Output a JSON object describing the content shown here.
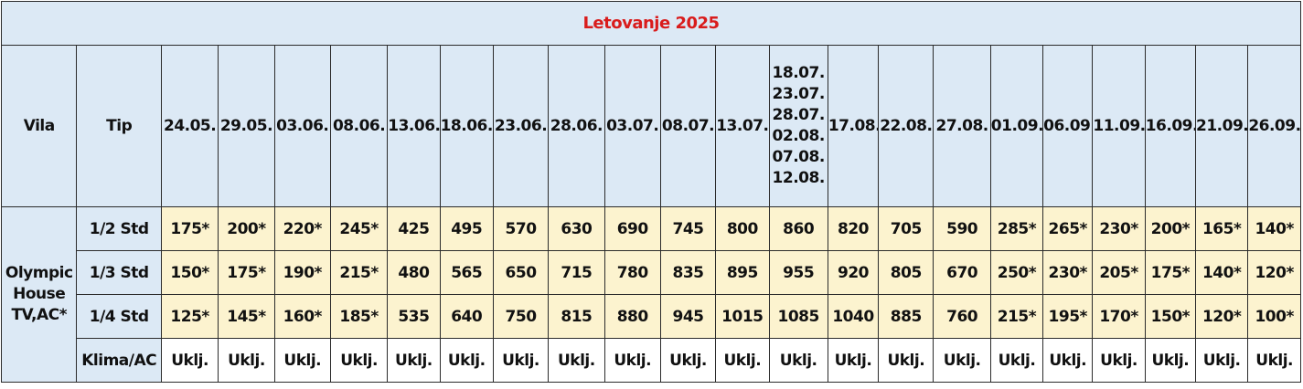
{
  "title": "Letovanje 2025",
  "headers": {
    "vila": "Vila",
    "tip": "Tip",
    "dates": [
      "24.05.",
      "29.05.",
      "03.06.",
      "08.06.",
      "13.06.",
      "18.06.",
      "23.06.",
      "28.06.",
      "03.07.",
      "08.07.",
      "13.07.",
      "18.07. 23.07. 28.07. 02.08. 07.08. 12.08.",
      "17.08.",
      "22.08.",
      "27.08.",
      "01.09.",
      "06.09.",
      "11.09.",
      "16.09.",
      "21.09.",
      "26.09."
    ],
    "multi_date": [
      "18.07.",
      "23.07.",
      "28.07.",
      "02.08.",
      "07.08.",
      "12.08."
    ]
  },
  "vila": {
    "line1": "Olympic",
    "line2": "House",
    "line3": "TV,AC*"
  },
  "rows": [
    {
      "tip": "1/2 Std",
      "prices": [
        "175*",
        "200*",
        "220*",
        "245*",
        "425",
        "495",
        "570",
        "630",
        "690",
        "745",
        "800",
        "860",
        "820",
        "705",
        "590",
        "285*",
        "265*",
        "230*",
        "200*",
        "165*",
        "140*"
      ]
    },
    {
      "tip": "1/3 Std",
      "prices": [
        "150*",
        "175*",
        "190*",
        "215*",
        "480",
        "565",
        "650",
        "715",
        "780",
        "835",
        "895",
        "955",
        "920",
        "805",
        "670",
        "250*",
        "230*",
        "205*",
        "175*",
        "140*",
        "120*"
      ]
    },
    {
      "tip": "1/4 Std",
      "prices": [
        "125*",
        "145*",
        "160*",
        "185*",
        "535",
        "640",
        "750",
        "815",
        "880",
        "945",
        "1015",
        "1085",
        "1040",
        "885",
        "760",
        "215*",
        "195*",
        "170*",
        "150*",
        "120*",
        "100*"
      ]
    }
  ],
  "ac_row": {
    "label": "Klima/AC",
    "values": [
      "Uklj.",
      "Uklj.",
      "Uklj.",
      "Uklj.",
      "Uklj.",
      "Uklj.",
      "Uklj.",
      "Uklj.",
      "Uklj.",
      "Uklj.",
      "Uklj.",
      "Uklj.",
      "Uklj.",
      "Uklj.",
      "Uklj.",
      "Uklj.",
      "Uklj.",
      "Uklj.",
      "Uklj.",
      "Uklj.",
      "Uklj."
    ]
  },
  "colors": {
    "header_bg": "#dce9f5",
    "price_bg": "#fcf3cf",
    "title_color": "#d91c1c"
  }
}
